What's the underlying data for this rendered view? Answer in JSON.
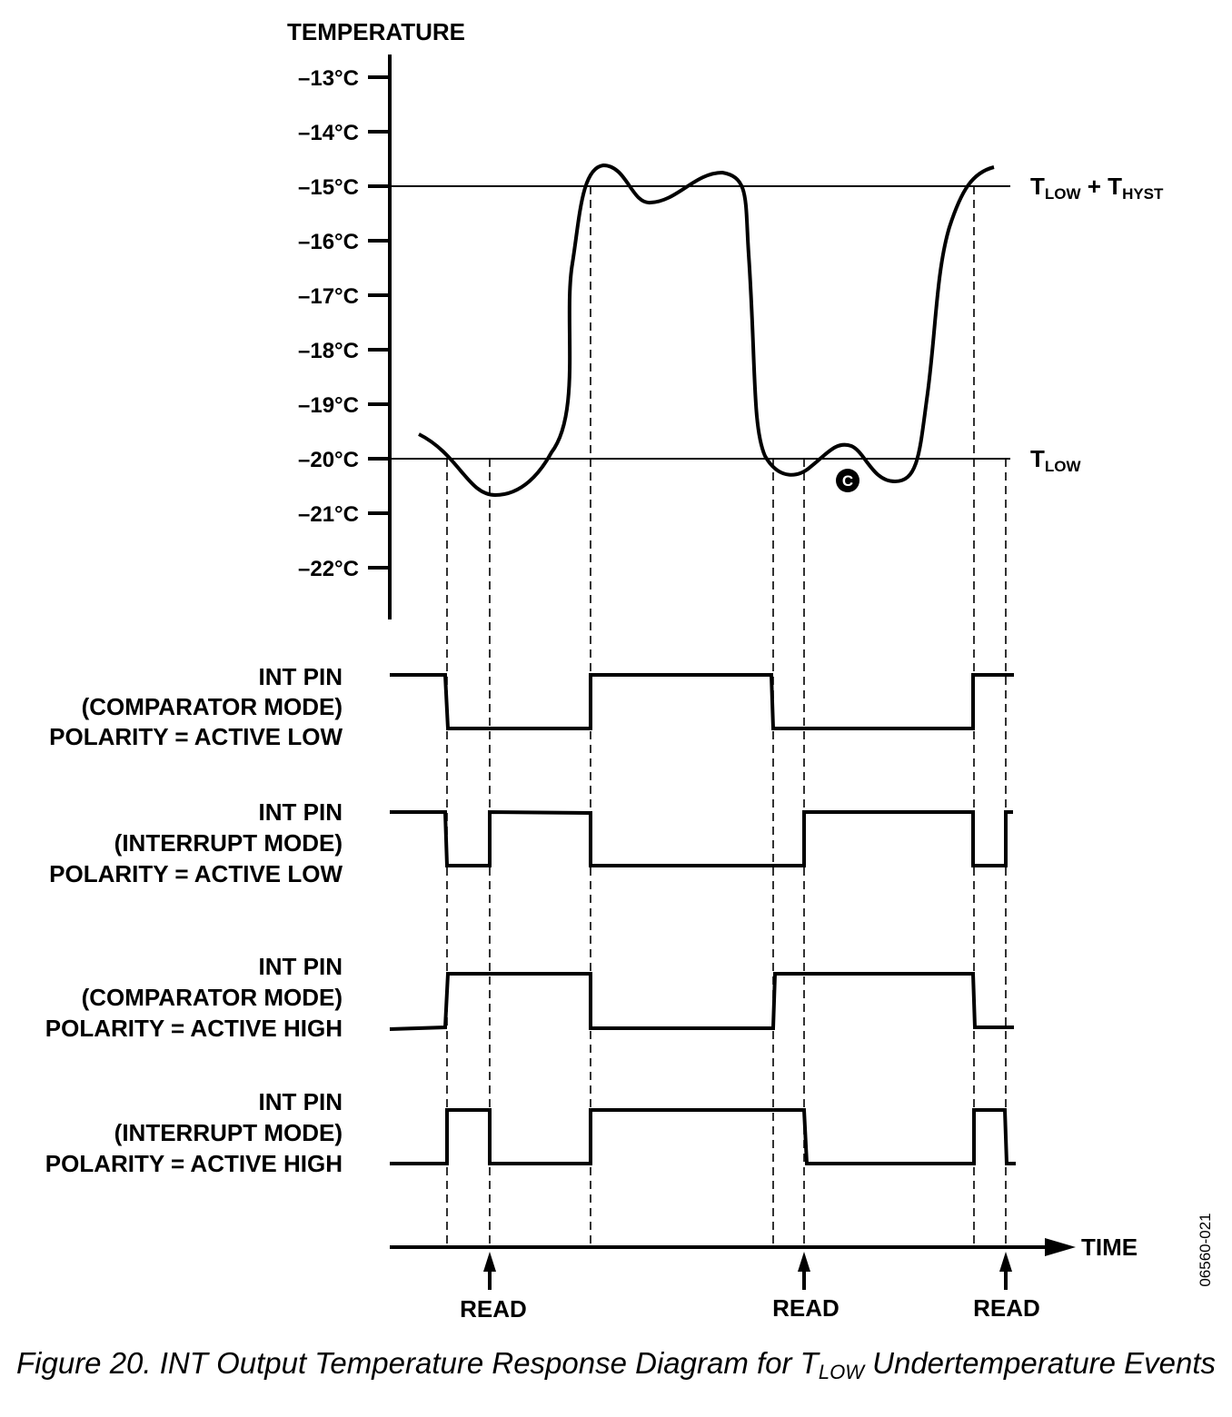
{
  "y_axis": {
    "title": "TEMPERATURE",
    "ticks": [
      "–13°C",
      "–14°C",
      "–15°C",
      "–16°C",
      "–17°C",
      "–18°C",
      "–19°C",
      "–20°C",
      "–21°C",
      "–22°C"
    ]
  },
  "thresholds": {
    "upper": {
      "main": "T",
      "sub1": "LOW",
      "plus": " + T",
      "sub2": "HYST"
    },
    "lower": {
      "main": "T",
      "sub": "LOW"
    }
  },
  "marker_c": "C",
  "signals": [
    {
      "line1": "INT PIN",
      "line2": "(COMPARATOR MODE)",
      "line3": "POLARITY = ACTIVE LOW"
    },
    {
      "line1": "INT PIN",
      "line2": "(INTERRUPT MODE)",
      "line3": "POLARITY = ACTIVE LOW"
    },
    {
      "line1": "INT PIN",
      "line2": "(COMPARATOR MODE)",
      "line3": "POLARITY = ACTIVE HIGH"
    },
    {
      "line1": "INT PIN",
      "line2": "(INTERRUPT MODE)",
      "line3": "POLARITY = ACTIVE HIGH"
    }
  ],
  "time_label": "TIME",
  "read_labels": [
    "READ",
    "READ",
    "READ"
  ],
  "figure_code": "06560-021",
  "caption": {
    "prefix": "Figure 20. INT Output Temperature Response Diagram for T",
    "sub": "LOW",
    "suffix": " Undertemperature Events"
  }
}
